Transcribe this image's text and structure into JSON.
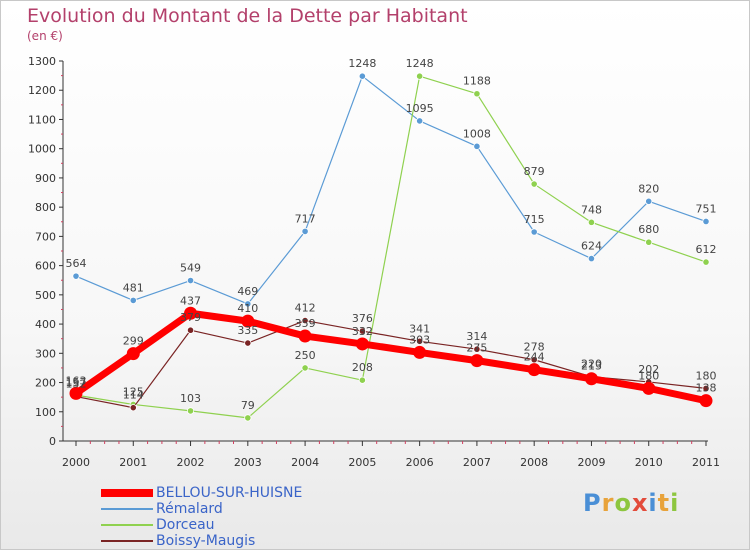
{
  "header": {
    "title": "Evolution du Montant de la Dette par Habitant",
    "unit": "(en €)"
  },
  "logo": {
    "text": "Proxiti",
    "colors": [
      "#4a8fd6",
      "#e8a33b",
      "#8dc63f",
      "#e34b3b",
      "#4a8fd6",
      "#e8a33b",
      "#8dc63f"
    ]
  },
  "chart_data": {
    "type": "line",
    "title": "Evolution du Montant de la Dette par Habitant",
    "ylabel": "(en €)",
    "xlabel": "",
    "x": [
      "2000",
      "2001",
      "2002",
      "2003",
      "2004",
      "2005",
      "2006",
      "2007",
      "2008",
      "2009",
      "2010",
      "2011"
    ],
    "yticks": [
      "0",
      "100",
      "200",
      "300",
      "400",
      "500",
      "600",
      "700",
      "800",
      "900",
      "1000",
      "1100",
      "1200",
      "1300"
    ],
    "ylim": [
      0,
      1300
    ],
    "grid": false,
    "legend_position": "bottom-left",
    "series": [
      {
        "name": "BELLOU-SUR-HUISNE",
        "color": "#ff0000",
        "values": [
          163,
          299,
          437,
          410,
          359,
          332,
          303,
          275,
          244,
          213,
          180,
          138
        ],
        "labels": [
          "163",
          "299",
          "437",
          "410",
          "359",
          "332",
          "303",
          "275",
          "244",
          "213",
          "180",
          "138"
        ]
      },
      {
        "name": "Rémalard",
        "color": "#5b9bd5",
        "values": [
          564,
          481,
          549,
          469,
          717,
          1248,
          1095,
          1008,
          715,
          624,
          820,
          751
        ],
        "labels": [
          "564",
          "481",
          "549",
          "469",
          "717",
          "1248",
          "1095",
          "1008",
          "715",
          "624",
          "820",
          "751"
        ]
      },
      {
        "name": "Dorceau",
        "color": "#8fd14f",
        "values": [
          157,
          125,
          103,
          79,
          250,
          208,
          1248,
          1188,
          879,
          748,
          680,
          612
        ],
        "labels": [
          "157",
          "125",
          "103",
          "79",
          "250",
          "208",
          "1248",
          "1188",
          "879",
          "748",
          "680",
          "612"
        ]
      },
      {
        "name": "Boissy-Maugis",
        "color": "#7a2424",
        "values": [
          152,
          114,
          379,
          335,
          412,
          376,
          341,
          314,
          278,
          220,
          202,
          180
        ],
        "labels": [
          "152",
          "114",
          "379",
          "335",
          "412",
          "376",
          "341",
          "314",
          "278",
          "220",
          "202",
          "180"
        ]
      }
    ]
  }
}
